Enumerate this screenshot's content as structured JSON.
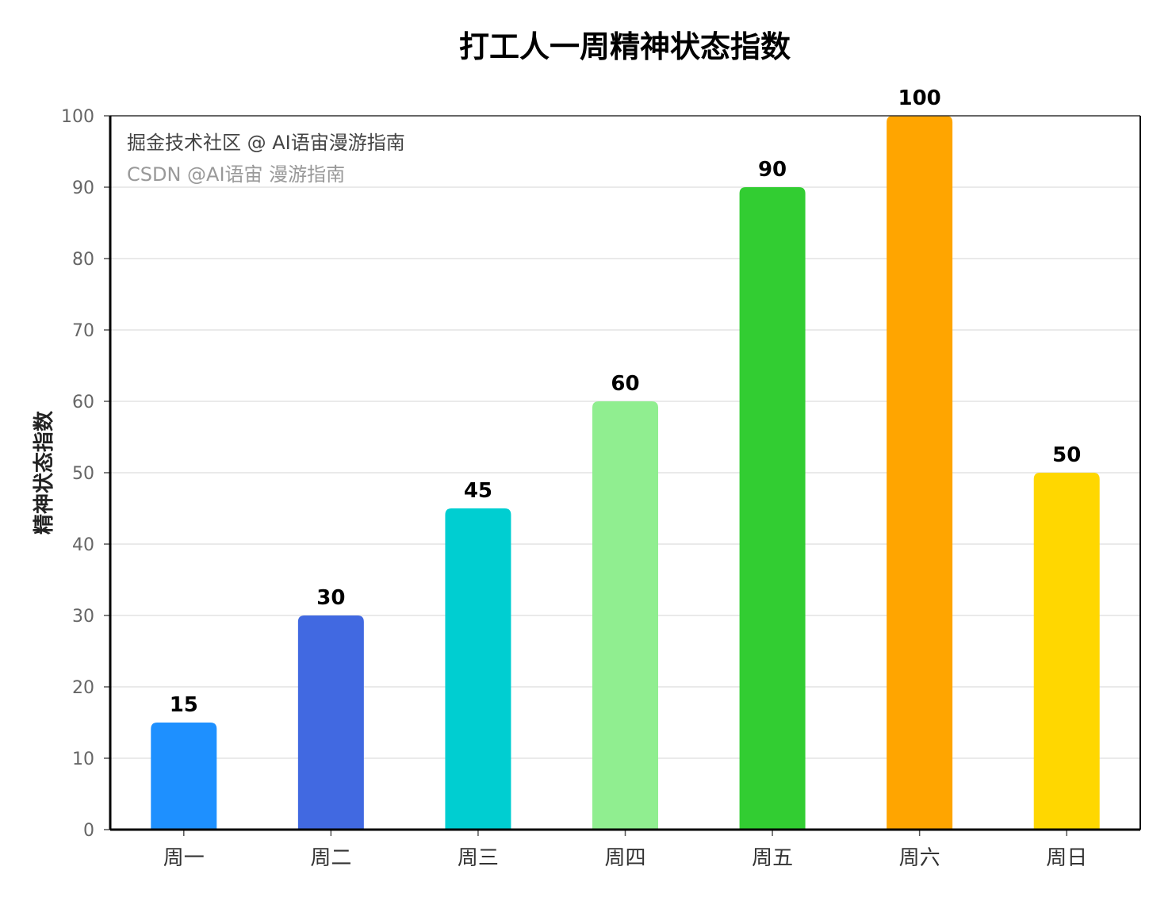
{
  "chart_data": {
    "type": "bar",
    "title": "打工人一周精神状态指数",
    "xlabel": "",
    "ylabel": "精神状态指数",
    "categories": [
      "周一",
      "周二",
      "周三",
      "周四",
      "周五",
      "周六",
      "周日"
    ],
    "values": [
      15,
      30,
      45,
      60,
      90,
      100,
      50
    ],
    "colors": [
      "#1E90FF",
      "#4169E1",
      "#00CED1",
      "#90EE90",
      "#32CD32",
      "#FFA500",
      "#FFD700"
    ],
    "ylim": [
      0,
      100
    ],
    "yticks": [
      0,
      10,
      20,
      30,
      40,
      50,
      60,
      70,
      80,
      90,
      100
    ],
    "grid": "horizontal",
    "data_labels": true
  },
  "watermark": {
    "line1": "掘金技术社区 @ AI语宙漫游指南",
    "line2": "CSDN @AI语宙 漫游指南"
  }
}
